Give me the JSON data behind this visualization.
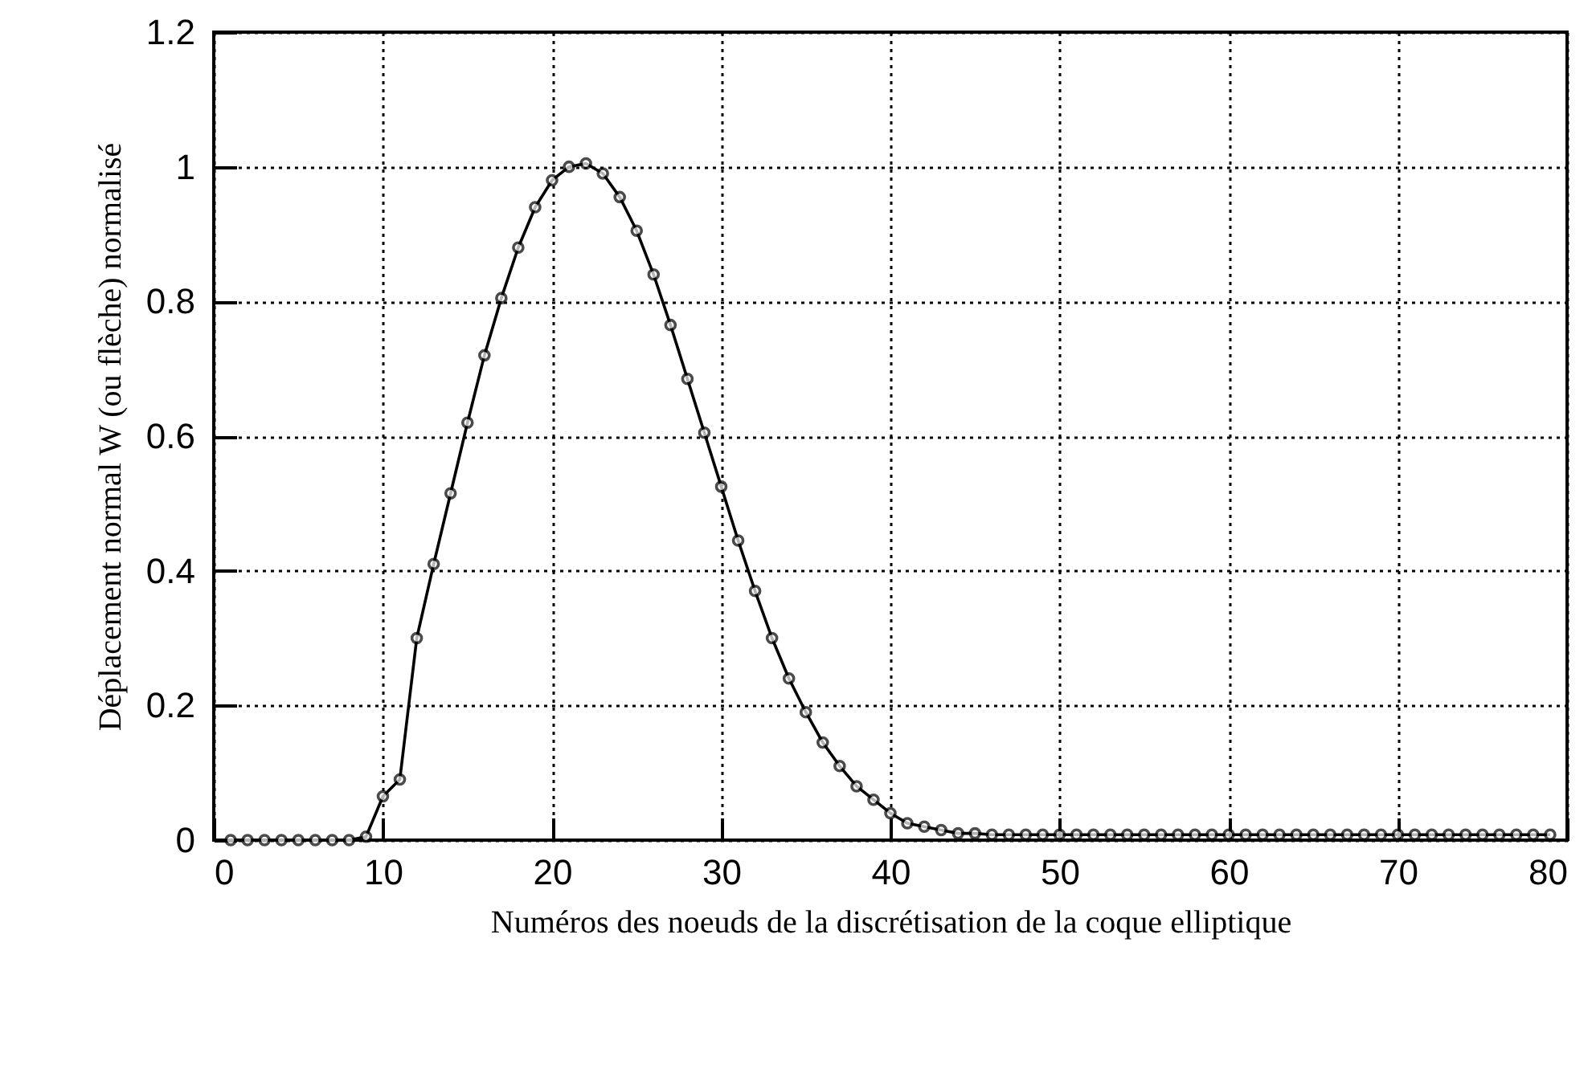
{
  "chart_data": {
    "type": "line",
    "xlabel": "Numéros des noeuds de la discrétisation de la coque elliptique",
    "ylabel": "Déplacement normal W (ou flèche) normalisé",
    "x": [
      1,
      2,
      3,
      4,
      5,
      6,
      7,
      8,
      9,
      10,
      11,
      12,
      13,
      14,
      15,
      16,
      17,
      18,
      19,
      20,
      21,
      22,
      23,
      24,
      25,
      26,
      27,
      28,
      29,
      30,
      31,
      32,
      33,
      34,
      35,
      36,
      37,
      38,
      39,
      40,
      41,
      42,
      43,
      44,
      45,
      46,
      47,
      48,
      49,
      50,
      51,
      52,
      53,
      54,
      55,
      56,
      57,
      58,
      59,
      60,
      61,
      62,
      63,
      64,
      65,
      66,
      67,
      68,
      69,
      70,
      71,
      72,
      73,
      74,
      75,
      76,
      77,
      78,
      79
    ],
    "series": [
      {
        "color": "#000000",
        "values": [
          0,
          0,
          0,
          0,
          0,
          0,
          0,
          0,
          0.005,
          0.065,
          0.09,
          0.3,
          0.41,
          0.515,
          0.62,
          0.72,
          0.805,
          0.88,
          0.94,
          0.98,
          1.0,
          1.005,
          0.99,
          0.955,
          0.905,
          0.84,
          0.765,
          0.685,
          0.605,
          0.525,
          0.445,
          0.37,
          0.3,
          0.24,
          0.19,
          0.145,
          0.11,
          0.08,
          0.06,
          0.04,
          0.025,
          0.02,
          0.015,
          0.01,
          0.01,
          0.008,
          0.008,
          0.008,
          0.008,
          0.008,
          0.008,
          0.008,
          0.008,
          0.008,
          0.008,
          0.008,
          0.008,
          0.008,
          0.008,
          0.008,
          0.008,
          0.008,
          0.008,
          0.008,
          0.008,
          0.008,
          0.008,
          0.008,
          0.008,
          0.008,
          0.008,
          0.008,
          0.008,
          0.008,
          0.008,
          0.008,
          0.008,
          0.008,
          0.008
        ]
      }
    ],
    "xlim": [
      0,
      80
    ],
    "xticks": [
      0,
      10,
      20,
      30,
      40,
      50,
      60,
      70,
      80
    ],
    "ylim": [
      0,
      1.2
    ],
    "yticks": [
      0,
      0.2,
      0.4,
      0.6,
      0.8,
      1,
      1.2
    ],
    "grid": true,
    "marker": "circle",
    "line_style": "solid"
  }
}
